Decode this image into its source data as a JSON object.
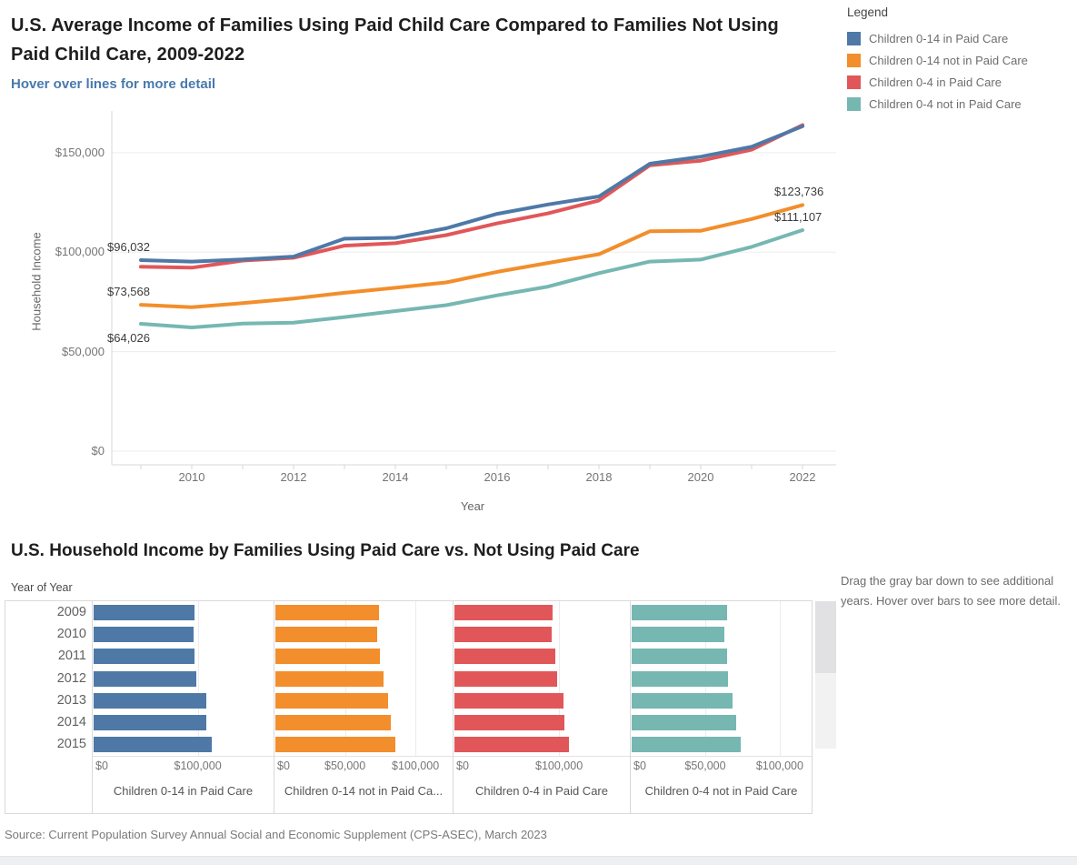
{
  "page": {
    "source_note": "Source: Current Population Survey Annual Social and Economic Supplement (CPS-ASEC), March 2023"
  },
  "line_section": {
    "title": "U.S. Average Income of Families Using Paid Child Care Compared to Families Not Using Paid Child Care, 2009-2022",
    "subtitle": "Hover over lines for more detail"
  },
  "legend": {
    "title": "Legend",
    "items": [
      {
        "label": "Children 0-14 in Paid Care",
        "color": "#4e79a7"
      },
      {
        "label": "Children 0-14 not in Paid Care",
        "color": "#f28e2b"
      },
      {
        "label": "Children 0-4 in Paid Care",
        "color": "#e15759"
      },
      {
        "label": "Children 0-4 not in Paid Care",
        "color": "#76b7b2"
      }
    ]
  },
  "bar_section": {
    "title": "U.S. Household Income by Families Using Paid Care vs. Not Using Paid Care",
    "row_header": "Year of Year",
    "note": "Drag the gray bar down to see additional years. Hover over bars to see more detail."
  },
  "chart_data": [
    {
      "type": "line",
      "title": "U.S. Average Income of Families Using Paid Child Care Compared to Families Not Using Paid Child Care, 2009-2022",
      "xlabel": "Year",
      "ylabel": "Household Income",
      "x": [
        2009,
        2010,
        2011,
        2012,
        2013,
        2014,
        2015,
        2016,
        2017,
        2018,
        2019,
        2020,
        2021,
        2022
      ],
      "ylim": [
        0,
        171000
      ],
      "grid": "horizontal",
      "legend_position": "top-right",
      "y_ticks": [
        {
          "value": 0,
          "label": "$0"
        },
        {
          "value": 50000,
          "label": "$50,000"
        },
        {
          "value": 100000,
          "label": "$100,000"
        },
        {
          "value": 150000,
          "label": "$150,000"
        }
      ],
      "x_ticks": [
        2010,
        2012,
        2014,
        2016,
        2018,
        2020,
        2022
      ],
      "series": [
        {
          "name": "Children 0-14 in Paid Care",
          "color": "#4e79a7",
          "values": [
            96032,
            95300,
            96400,
            97800,
            106800,
            107200,
            112000,
            119300,
            124000,
            128000,
            144500,
            148000,
            153000,
            163300
          ]
        },
        {
          "name": "Children 0-14 not in Paid Care",
          "color": "#f28e2b",
          "values": [
            73568,
            72400,
            74400,
            76700,
            79600,
            82100,
            84800,
            90100,
            94600,
            99000,
            110500,
            110800,
            116700,
            123736
          ]
        },
        {
          "name": "Children 0-4 in Paid Care",
          "color": "#e15759",
          "values": [
            92700,
            92200,
            95800,
            97200,
            103300,
            104500,
            108600,
            114500,
            119500,
            126000,
            143700,
            146000,
            151500,
            163900
          ]
        },
        {
          "name": "Children 0-4 not in Paid Care",
          "color": "#76b7b2",
          "values": [
            64026,
            62200,
            64100,
            64600,
            67400,
            70400,
            73400,
            78300,
            82700,
            89500,
            95300,
            96300,
            102700,
            111107
          ]
        }
      ],
      "annotations": [
        {
          "text": "$96,032",
          "year": 2009,
          "value": 96032,
          "side": "left",
          "placement": "above"
        },
        {
          "text": "$73,568",
          "year": 2009,
          "value": 73568,
          "side": "left",
          "placement": "above"
        },
        {
          "text": "$64,026",
          "year": 2009,
          "value": 64026,
          "side": "left",
          "placement": "below"
        },
        {
          "text": "$123,736",
          "year": 2022,
          "value": 123736,
          "side": "right",
          "placement": "above"
        },
        {
          "text": "$111,107",
          "year": 2022,
          "value": 111107,
          "side": "right",
          "placement": "above"
        }
      ]
    },
    {
      "type": "bar",
      "orientation": "horizontal",
      "title": "U.S. Household Income by Families Using Paid Care vs. Not Using Paid Care",
      "row_label_header": "Year of Year",
      "categories": [
        "2009",
        "2010",
        "2011",
        "2012",
        "2013",
        "2014",
        "2015"
      ],
      "panels": [
        {
          "name": "Children 0-14 in Paid Care",
          "label_display": "Children 0-14 in Paid Care",
          "color": "#4e79a7",
          "xlim": [
            0,
            173000
          ],
          "ticks": [
            {
              "value": 0,
              "label": "$0"
            },
            {
              "value": 100000,
              "label": "$100,000"
            }
          ],
          "values": [
            96032,
            95300,
            96400,
            97800,
            106800,
            107200,
            112000
          ]
        },
        {
          "name": "Children 0-14 not in Paid Care",
          "label_display": "Children 0-14 not in Paid Ca...",
          "color": "#f28e2b",
          "xlim": [
            0,
            127000
          ],
          "ticks": [
            {
              "value": 0,
              "label": "$0"
            },
            {
              "value": 50000,
              "label": "$50,000"
            },
            {
              "value": 100000,
              "label": "$100,000"
            }
          ],
          "values": [
            73568,
            72400,
            74400,
            76700,
            79600,
            82100,
            84800
          ]
        },
        {
          "name": "Children 0-4 in Paid Care",
          "label_display": "Children 0-4 in Paid Care",
          "color": "#e15759",
          "xlim": [
            0,
            168000
          ],
          "ticks": [
            {
              "value": 0,
              "label": "$0"
            },
            {
              "value": 100000,
              "label": "$100,000"
            }
          ],
          "values": [
            92700,
            92200,
            95800,
            97200,
            103300,
            104500,
            108600
          ]
        },
        {
          "name": "Children 0-4 not in Paid Care",
          "label_display": "Children 0-4 not in Paid Care",
          "color": "#76b7b2",
          "xlim": [
            0,
            122000
          ],
          "ticks": [
            {
              "value": 0,
              "label": "$0"
            },
            {
              "value": 50000,
              "label": "$50,000"
            },
            {
              "value": 100000,
              "label": "$100,000"
            }
          ],
          "values": [
            64026,
            62200,
            64100,
            64600,
            67400,
            70400,
            73400
          ]
        }
      ]
    }
  ]
}
